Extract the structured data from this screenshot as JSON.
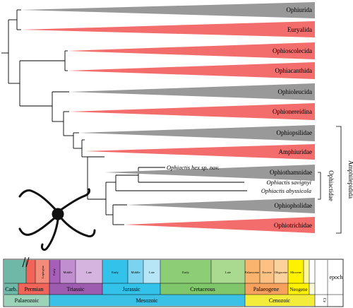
{
  "clades": [
    {
      "name": "Ophiurida",
      "color": "gray"
    },
    {
      "name": "Euryalida",
      "color": "red"
    },
    {
      "name": "Ophioscolecida",
      "color": "red"
    },
    {
      "name": "Ophiacanthida",
      "color": "red"
    },
    {
      "name": "Ophioleucida",
      "color": "gray"
    },
    {
      "name": "Ophionereidina",
      "color": "red"
    },
    {
      "name": "Ophiopsilidae",
      "color": "gray"
    },
    {
      "name": "Amphiuridae",
      "color": "red"
    },
    {
      "name": "Ophiothamnidae",
      "color": "gray"
    }
  ],
  "ophiactis_taxa": [
    "Ophiactis hex sp. nov.",
    "Ophiactis savignyi",
    "Ophiactis abyssicola"
  ],
  "lower_clades": [
    {
      "name": "Ophiopholidae",
      "color": "gray"
    },
    {
      "name": "Ophiotrichidae",
      "color": "red"
    }
  ],
  "bracket_labels": {
    "family": "Ophiactidae",
    "order": "Amphilepidida"
  },
  "colors": {
    "gray": "#999999",
    "red": "#f36d6d",
    "carboniferous": "#6fb8a8",
    "permian": "#f0645a",
    "triassic": "#9d5cb0",
    "jurassic": "#33c2ea",
    "cretaceous": "#80c76b",
    "palaeogene": "#f7a15e",
    "neogene": "#fff200",
    "palaeozoic": "#9bd3b9",
    "mesozoic": "#3bc0e6",
    "cenozoic": "#f4ec3a"
  },
  "timescale": {
    "epoch_header": "epoch",
    "periods": {
      "carb": "Carb.",
      "permian": "Permian",
      "triassic": "Triassic",
      "jurassic": "Jurassic",
      "cretaceous": "Cretaceous",
      "palaeogene": "Palaeogene",
      "neogene": "Neogene"
    },
    "eras": {
      "palaeozoic": "Palaeozoic",
      "mesozoic": "Mesozoic",
      "cenozoic": "Cenozoic",
      "cenozoic_short": "Ce"
    },
    "epochs": {
      "lopingian": "Lopingian",
      "early": "Early",
      "middle": "Middle",
      "late": "Late",
      "palaeocene": "Palaeocene",
      "eocene": "Eocene",
      "oligocene": "Oligocene",
      "miocene": "Miocene"
    }
  }
}
